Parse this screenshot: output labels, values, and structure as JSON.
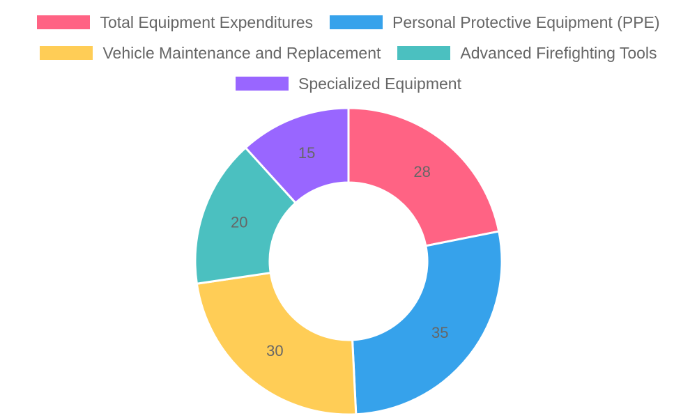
{
  "chart_data": {
    "type": "doughnut",
    "categories": [
      "Total Equipment Expenditures",
      "Personal Protective Equipment (PPE)",
      "Vehicle Maintenance and Replacement",
      "Advanced Firefighting Tools",
      "Specialized Equipment"
    ],
    "values": [
      28,
      35,
      30,
      20,
      15
    ],
    "colors": [
      "#ff6384",
      "#36a2eb",
      "#ffcd56",
      "#4bc0c0",
      "#9966ff"
    ],
    "legend_position": "top",
    "data_labels": true
  }
}
